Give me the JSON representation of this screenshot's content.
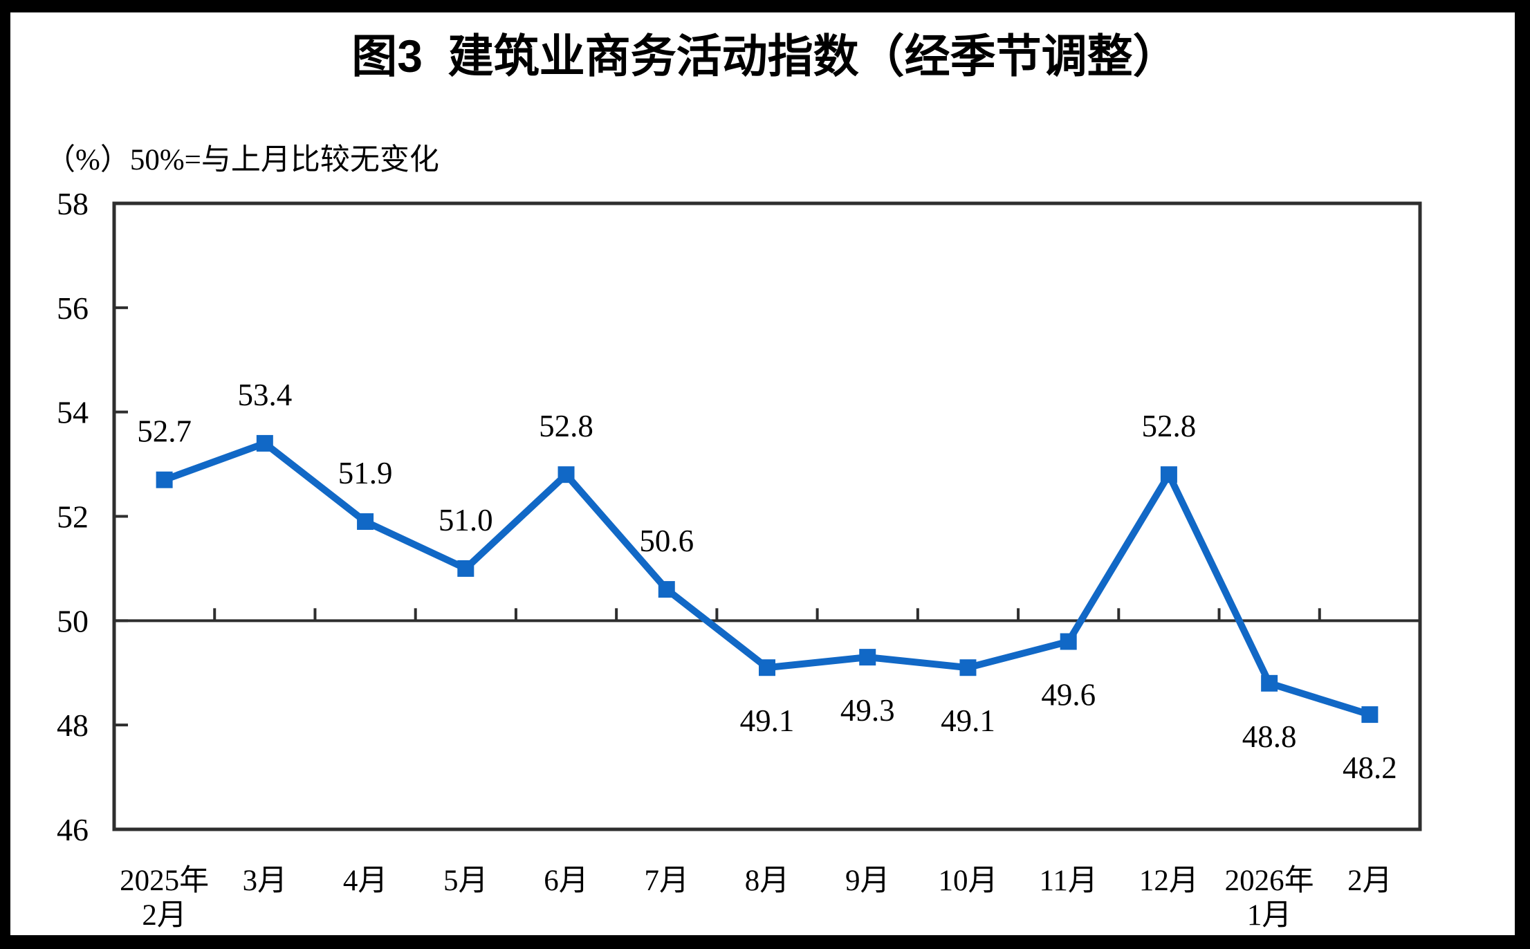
{
  "title": "图3  建筑业商务活动指数（经季节调整）",
  "subtitle": {
    "unit_label": "（%）",
    "note": "50%=与上月比较无变化"
  },
  "chart_data": {
    "type": "line",
    "title": "图3 建筑业商务活动指数（经季节调整）",
    "unit_note": "（%）50%=与上月比较无变化",
    "categories": [
      "2025年\n2月",
      "3月",
      "4月",
      "5月",
      "6月",
      "7月",
      "8月",
      "9月",
      "10月",
      "11月",
      "12月",
      "2026年\n1月",
      "2月"
    ],
    "values": [
      52.7,
      53.4,
      51.9,
      51.0,
      52.8,
      50.6,
      49.1,
      49.3,
      49.1,
      49.6,
      52.8,
      48.8,
      48.2
    ],
    "value_labels": [
      "52.7",
      "53.4",
      "51.9",
      "51.0",
      "52.8",
      "50.6",
      "49.1",
      "49.3",
      "49.1",
      "49.6",
      "52.8",
      "48.8",
      "48.2"
    ],
    "ylim": [
      46,
      58
    ],
    "yticks": [
      46,
      48,
      50,
      52,
      54,
      56,
      58
    ],
    "reference_line": 50,
    "grid": false,
    "legend": "none",
    "marker": "square",
    "series_color": "#1168C6",
    "axis_color": "#2e2e2e",
    "label_color": "#000000",
    "frame_color": "#000000",
    "background_color": "#ffffff"
  }
}
